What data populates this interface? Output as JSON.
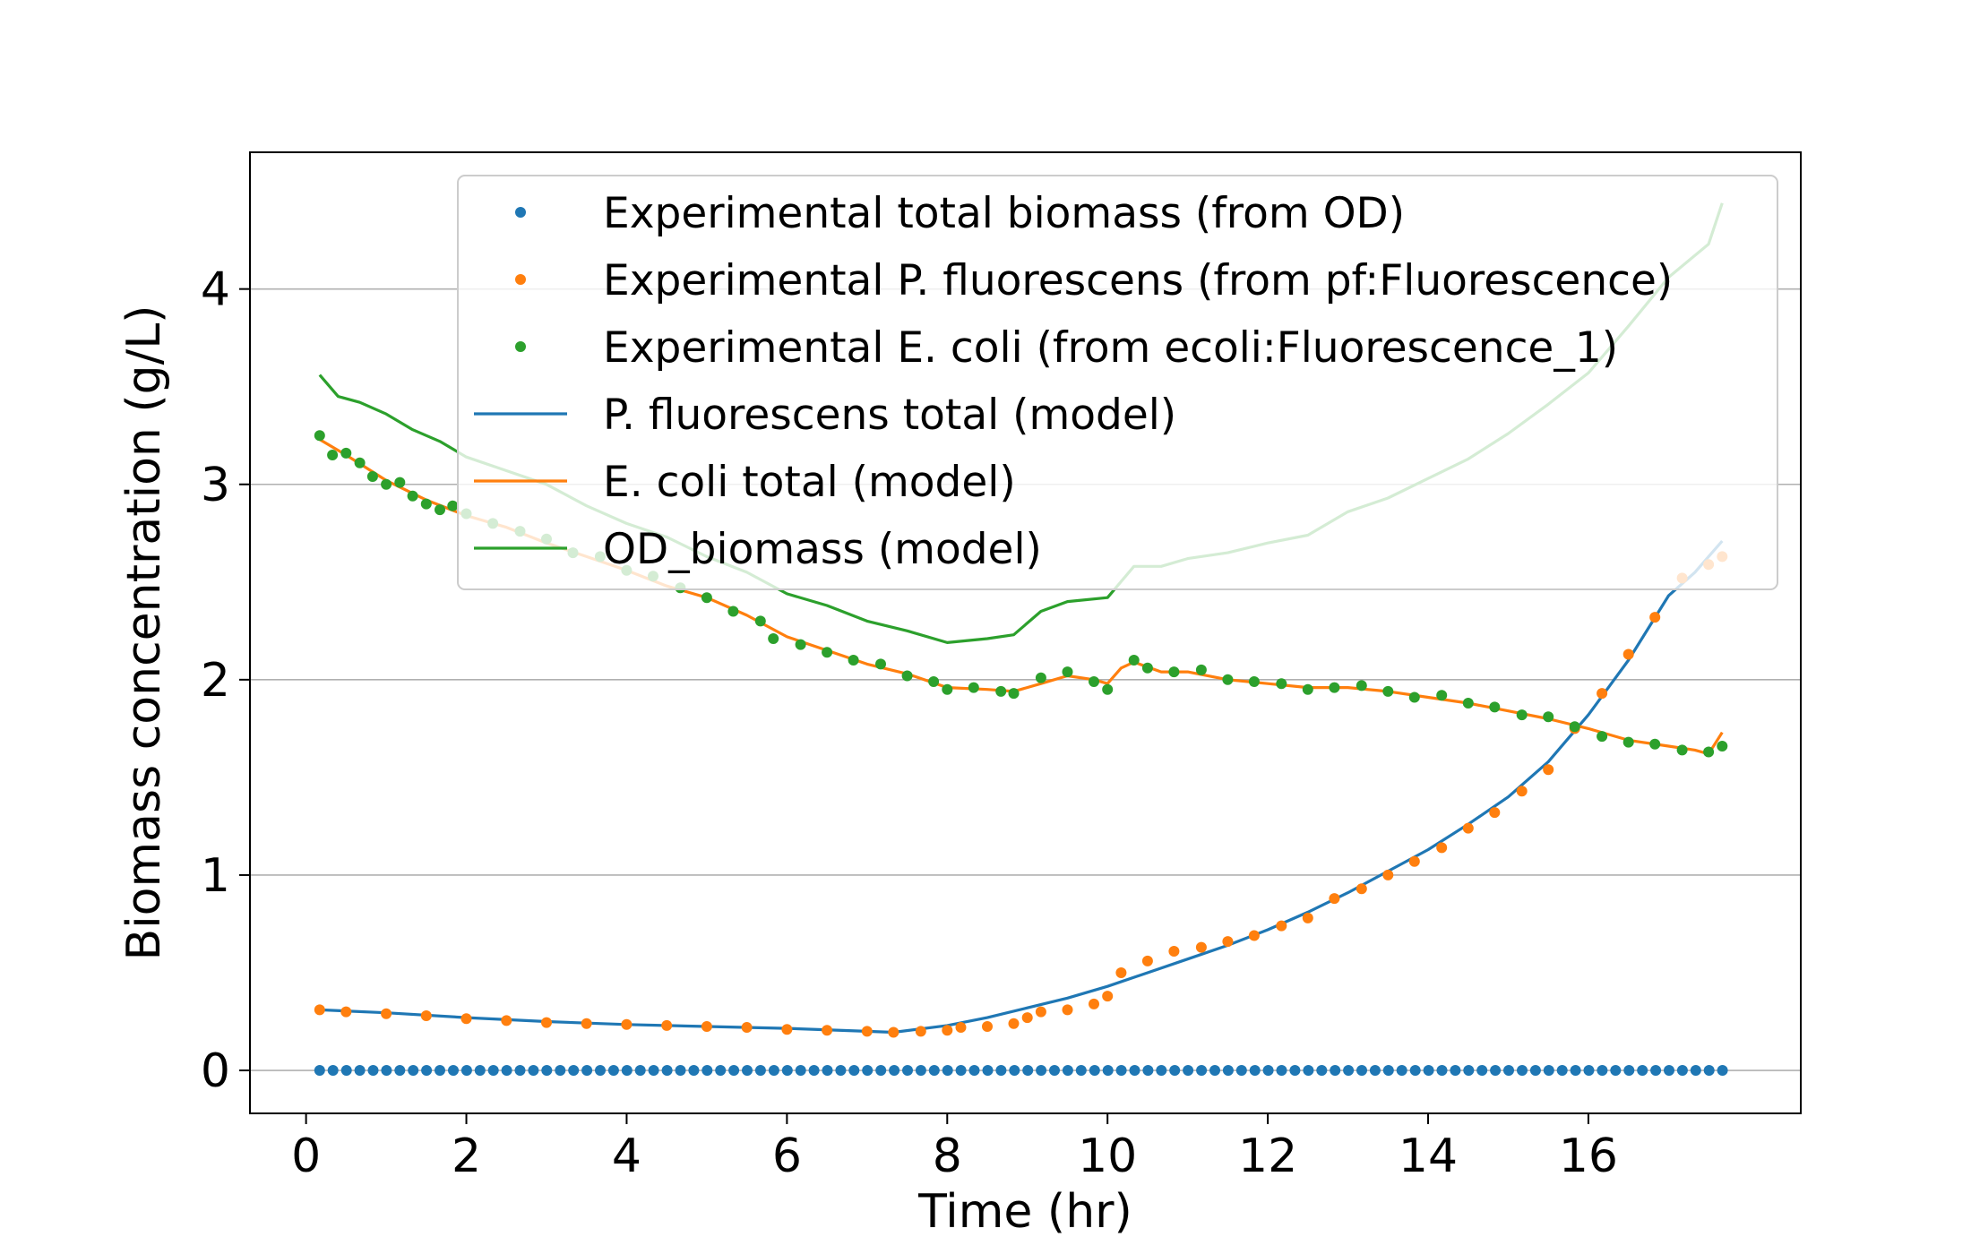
{
  "chart_data": {
    "type": "line",
    "xlabel": "Time (hr)",
    "ylabel": "Biomass concentration (g/L)",
    "xlim": [
      -0.7,
      18.65
    ],
    "ylim": [
      -0.22,
      4.7
    ],
    "xticks": [
      0,
      2,
      4,
      6,
      8,
      10,
      12,
      14,
      16
    ],
    "yticks": [
      0,
      1,
      2,
      3,
      4
    ],
    "grid": "horizontal",
    "legend_position": "top-right",
    "colors": {
      "blue": "#1f77b4",
      "orange": "#ff7f0e",
      "green": "#2ca02c",
      "grid": "#b0b0b0"
    },
    "series": [
      {
        "name": "Experimental total biomass (from OD)",
        "kind": "scatter",
        "color": "#1f77b4",
        "x_start": 0.17,
        "x_step": 0.1667,
        "count": 106,
        "values_constant": 0.0
      },
      {
        "name": "Experimental P. fluorescens (from pf:Fluorescence)",
        "kind": "scatter",
        "color": "#ff7f0e",
        "points": [
          [
            0.17,
            0.31
          ],
          [
            0.5,
            0.3
          ],
          [
            1.0,
            0.29
          ],
          [
            1.5,
            0.28
          ],
          [
            2.0,
            0.265
          ],
          [
            2.5,
            0.255
          ],
          [
            3.0,
            0.245
          ],
          [
            3.5,
            0.24
          ],
          [
            4.0,
            0.235
          ],
          [
            4.5,
            0.23
          ],
          [
            5.0,
            0.225
          ],
          [
            5.5,
            0.22
          ],
          [
            6.0,
            0.21
          ],
          [
            6.5,
            0.205
          ],
          [
            7.0,
            0.2
          ],
          [
            7.33,
            0.195
          ],
          [
            7.67,
            0.2
          ],
          [
            8.0,
            0.205
          ],
          [
            8.17,
            0.22
          ],
          [
            8.5,
            0.225
          ],
          [
            8.83,
            0.24
          ],
          [
            9.0,
            0.27
          ],
          [
            9.17,
            0.3
          ],
          [
            9.5,
            0.31
          ],
          [
            9.83,
            0.34
          ],
          [
            10.0,
            0.38
          ],
          [
            10.17,
            0.5
          ],
          [
            10.5,
            0.56
          ],
          [
            10.83,
            0.61
          ],
          [
            11.17,
            0.63
          ],
          [
            11.5,
            0.66
          ],
          [
            11.83,
            0.69
          ],
          [
            12.17,
            0.74
          ],
          [
            12.5,
            0.78
          ],
          [
            12.83,
            0.88
          ],
          [
            13.17,
            0.93
          ],
          [
            13.5,
            1.0
          ],
          [
            13.83,
            1.07
          ],
          [
            14.17,
            1.14
          ],
          [
            14.5,
            1.24
          ],
          [
            14.83,
            1.32
          ],
          [
            15.17,
            1.43
          ],
          [
            15.5,
            1.54
          ],
          [
            15.83,
            1.75
          ],
          [
            16.17,
            1.93
          ],
          [
            16.5,
            2.13
          ],
          [
            16.83,
            2.32
          ],
          [
            17.17,
            2.52
          ],
          [
            17.5,
            2.59
          ],
          [
            17.67,
            2.63
          ]
        ]
      },
      {
        "name": "Experimental E. coli (from ecoli:Fluorescence_1)",
        "kind": "scatter",
        "color": "#2ca02c",
        "points": [
          [
            0.17,
            3.25
          ],
          [
            0.33,
            3.15
          ],
          [
            0.5,
            3.16
          ],
          [
            0.67,
            3.11
          ],
          [
            0.83,
            3.04
          ],
          [
            1.0,
            3.0
          ],
          [
            1.17,
            3.01
          ],
          [
            1.33,
            2.94
          ],
          [
            1.5,
            2.9
          ],
          [
            1.67,
            2.87
          ],
          [
            1.83,
            2.89
          ],
          [
            2.0,
            2.85
          ],
          [
            2.33,
            2.8
          ],
          [
            2.67,
            2.76
          ],
          [
            3.0,
            2.72
          ],
          [
            3.33,
            2.65
          ],
          [
            3.67,
            2.63
          ],
          [
            4.0,
            2.56
          ],
          [
            4.33,
            2.53
          ],
          [
            4.67,
            2.47
          ],
          [
            5.0,
            2.42
          ],
          [
            5.33,
            2.35
          ],
          [
            5.67,
            2.3
          ],
          [
            5.83,
            2.21
          ],
          [
            6.17,
            2.18
          ],
          [
            6.5,
            2.14
          ],
          [
            6.83,
            2.1
          ],
          [
            7.17,
            2.08
          ],
          [
            7.5,
            2.02
          ],
          [
            7.83,
            1.99
          ],
          [
            8.0,
            1.95
          ],
          [
            8.33,
            1.96
          ],
          [
            8.67,
            1.94
          ],
          [
            8.83,
            1.93
          ],
          [
            9.17,
            2.01
          ],
          [
            9.5,
            2.04
          ],
          [
            9.83,
            1.99
          ],
          [
            10.0,
            1.95
          ],
          [
            10.33,
            2.1
          ],
          [
            10.5,
            2.06
          ],
          [
            10.83,
            2.04
          ],
          [
            11.17,
            2.05
          ],
          [
            11.5,
            2.0
          ],
          [
            11.83,
            1.99
          ],
          [
            12.17,
            1.98
          ],
          [
            12.5,
            1.95
          ],
          [
            12.83,
            1.96
          ],
          [
            13.17,
            1.97
          ],
          [
            13.5,
            1.94
          ],
          [
            13.83,
            1.91
          ],
          [
            14.17,
            1.92
          ],
          [
            14.5,
            1.88
          ],
          [
            14.83,
            1.86
          ],
          [
            15.17,
            1.82
          ],
          [
            15.5,
            1.81
          ],
          [
            15.83,
            1.76
          ],
          [
            16.17,
            1.71
          ],
          [
            16.5,
            1.68
          ],
          [
            16.83,
            1.67
          ],
          [
            17.17,
            1.64
          ],
          [
            17.5,
            1.63
          ],
          [
            17.67,
            1.66
          ]
        ]
      },
      {
        "name": "P. fluorescens total (model)",
        "kind": "line",
        "color": "#1f77b4",
        "points": [
          [
            0.17,
            0.31
          ],
          [
            1,
            0.295
          ],
          [
            2,
            0.27
          ],
          [
            3,
            0.25
          ],
          [
            4,
            0.235
          ],
          [
            5,
            0.225
          ],
          [
            6,
            0.215
          ],
          [
            7,
            0.2
          ],
          [
            7.33,
            0.195
          ],
          [
            8,
            0.23
          ],
          [
            8.5,
            0.27
          ],
          [
            9,
            0.32
          ],
          [
            9.5,
            0.37
          ],
          [
            10,
            0.43
          ],
          [
            10.5,
            0.5
          ],
          [
            11,
            0.57
          ],
          [
            11.5,
            0.64
          ],
          [
            12,
            0.72
          ],
          [
            12.5,
            0.81
          ],
          [
            13,
            0.91
          ],
          [
            13.5,
            1.02
          ],
          [
            14,
            1.13
          ],
          [
            14.5,
            1.26
          ],
          [
            15,
            1.4
          ],
          [
            15.5,
            1.58
          ],
          [
            16,
            1.82
          ],
          [
            16.5,
            2.1
          ],
          [
            17,
            2.43
          ],
          [
            17.33,
            2.55
          ],
          [
            17.67,
            2.71
          ]
        ]
      },
      {
        "name": "E. coli total (model)",
        "kind": "line",
        "color": "#ff7f0e",
        "points": [
          [
            0.17,
            3.23
          ],
          [
            0.5,
            3.15
          ],
          [
            1,
            3.02
          ],
          [
            1.5,
            2.92
          ],
          [
            2,
            2.84
          ],
          [
            2.5,
            2.78
          ],
          [
            3,
            2.7
          ],
          [
            3.5,
            2.63
          ],
          [
            4,
            2.56
          ],
          [
            4.5,
            2.48
          ],
          [
            5,
            2.42
          ],
          [
            5.5,
            2.33
          ],
          [
            6,
            2.22
          ],
          [
            6.5,
            2.15
          ],
          [
            7,
            2.08
          ],
          [
            7.5,
            2.03
          ],
          [
            8,
            1.96
          ],
          [
            8.5,
            1.95
          ],
          [
            8.83,
            1.94
          ],
          [
            9.17,
            1.98
          ],
          [
            9.5,
            2.02
          ],
          [
            9.83,
            2.0
          ],
          [
            10.0,
            1.98
          ],
          [
            10.17,
            2.06
          ],
          [
            10.33,
            2.09
          ],
          [
            10.67,
            2.04
          ],
          [
            11.0,
            2.04
          ],
          [
            11.5,
            2.0
          ],
          [
            12,
            1.98
          ],
          [
            12.5,
            1.96
          ],
          [
            13,
            1.96
          ],
          [
            13.5,
            1.94
          ],
          [
            14,
            1.91
          ],
          [
            14.5,
            1.88
          ],
          [
            15,
            1.84
          ],
          [
            15.5,
            1.8
          ],
          [
            16,
            1.75
          ],
          [
            16.5,
            1.69
          ],
          [
            17,
            1.66
          ],
          [
            17.33,
            1.64
          ],
          [
            17.5,
            1.62
          ],
          [
            17.67,
            1.73
          ]
        ]
      },
      {
        "name": "OD_biomass (model)",
        "kind": "line",
        "color": "#2ca02c",
        "points": [
          [
            0.17,
            3.56
          ],
          [
            0.4,
            3.45
          ],
          [
            0.67,
            3.42
          ],
          [
            1.0,
            3.36
          ],
          [
            1.33,
            3.28
          ],
          [
            1.67,
            3.22
          ],
          [
            2.0,
            3.14
          ],
          [
            2.5,
            3.07
          ],
          [
            3.0,
            3.0
          ],
          [
            3.5,
            2.89
          ],
          [
            4.0,
            2.8
          ],
          [
            4.5,
            2.73
          ],
          [
            5.0,
            2.63
          ],
          [
            5.5,
            2.55
          ],
          [
            6.0,
            2.44
          ],
          [
            6.5,
            2.38
          ],
          [
            7.0,
            2.3
          ],
          [
            7.5,
            2.25
          ],
          [
            8.0,
            2.19
          ],
          [
            8.5,
            2.21
          ],
          [
            8.83,
            2.23
          ],
          [
            9.17,
            2.35
          ],
          [
            9.5,
            2.4
          ],
          [
            10.0,
            2.42
          ],
          [
            10.33,
            2.58
          ],
          [
            10.67,
            2.58
          ],
          [
            11.0,
            2.62
          ],
          [
            11.5,
            2.65
          ],
          [
            12.0,
            2.7
          ],
          [
            12.5,
            2.74
          ],
          [
            13.0,
            2.86
          ],
          [
            13.5,
            2.93
          ],
          [
            14.0,
            3.03
          ],
          [
            14.5,
            3.13
          ],
          [
            15.0,
            3.26
          ],
          [
            15.5,
            3.41
          ],
          [
            16.0,
            3.57
          ],
          [
            16.5,
            3.81
          ],
          [
            17.0,
            4.06
          ],
          [
            17.5,
            4.23
          ],
          [
            17.67,
            4.44
          ]
        ]
      }
    ]
  }
}
